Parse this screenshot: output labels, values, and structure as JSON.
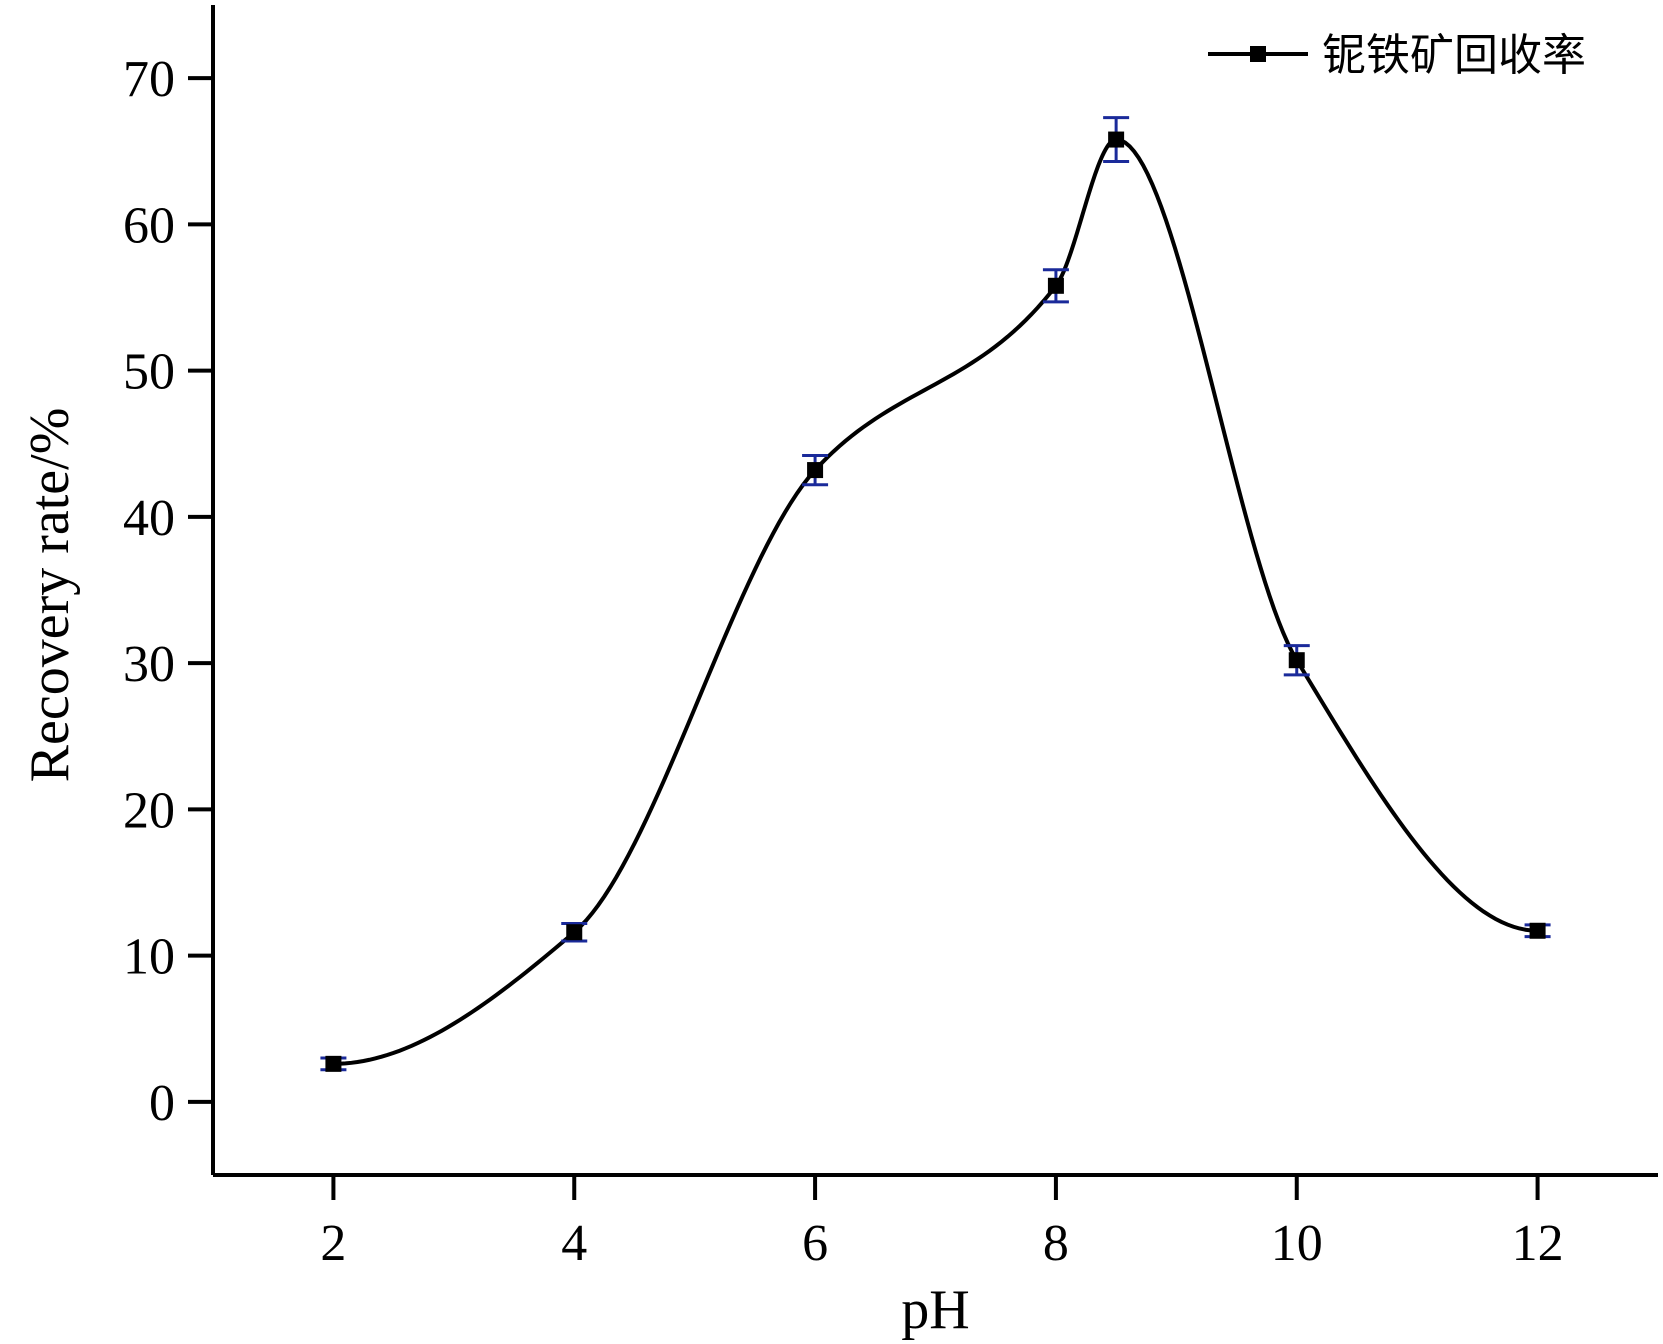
{
  "chart_data": {
    "type": "line",
    "title": "",
    "xlabel": "pH",
    "ylabel": "Recovery rate/%",
    "xlim": [
      1,
      13
    ],
    "ylim": [
      -5,
      75
    ],
    "x_ticks": [
      2,
      4,
      6,
      8,
      10,
      12
    ],
    "y_ticks": [
      0,
      10,
      20,
      30,
      40,
      50,
      60,
      70
    ],
    "grid": false,
    "legend_position": "top-right",
    "series": [
      {
        "name": "铌铁矿回收率",
        "x": [
          2,
          4,
          6,
          8,
          8.5,
          10,
          12
        ],
        "y": [
          2.6,
          11.6,
          43.2,
          55.8,
          65.8,
          30.2,
          11.7
        ],
        "error": [
          0.4,
          0.6,
          1.0,
          1.1,
          1.5,
          1.0,
          0.4
        ],
        "line_color": "#000000",
        "marker_color": "#000000",
        "error_color": "#1a2a9a",
        "smoothed": true
      }
    ]
  }
}
